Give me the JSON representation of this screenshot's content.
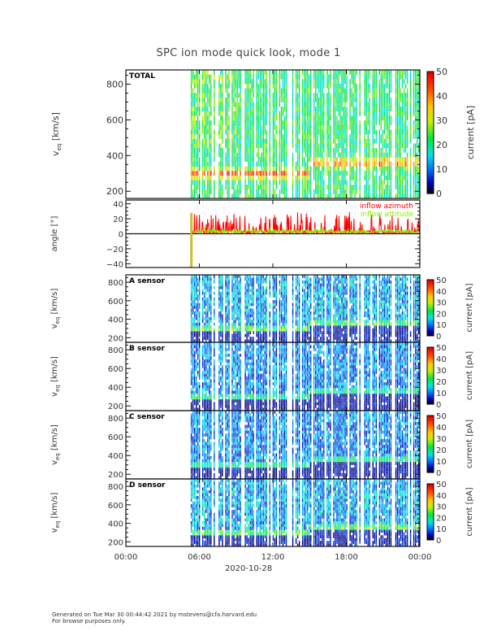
{
  "title": "SPC ion mode quick look, mode 1",
  "footer": {
    "line1": "Generated on Tue Mar 30 00:44:42 2021 by mstevens@cfa.harvard.edu",
    "line2": "For browse purposes only."
  },
  "chart_data": [
    {
      "type": "heatmap",
      "panel": "TOTAL",
      "label": "TOTAL",
      "ylabel": "v_eq [km/s]",
      "ylabel_main": "v",
      "ylabel_sub": "eq",
      "ylabel_unit": "[km/s]",
      "ylim": [
        160,
        880
      ],
      "yticks": [
        "200",
        "400",
        "600",
        "800"
      ],
      "xlim_hours": [
        0,
        24
      ],
      "data_start_hour": 5.3,
      "colorbar": {
        "label": "current [pA]",
        "range": [
          0,
          50
        ],
        "ticks": [
          "0",
          "10",
          "20",
          "30",
          "40",
          "50"
        ]
      },
      "peak_velocity_kms": {
        "from_6h_to_15h": 300,
        "from_15h_to_24h": 360
      }
    },
    {
      "type": "line",
      "panel": "angle",
      "ylabel": "angle [°]",
      "ylim": [
        -45,
        45
      ],
      "yticks": [
        "-40",
        "-20",
        "0",
        "20",
        "40"
      ],
      "xlim_hours": [
        0,
        24
      ],
      "series": [
        {
          "name": "inflow azimuth",
          "color": "#ff0000",
          "baseline_deg": 2,
          "spike_max_deg": 27
        },
        {
          "name": "inflow attitude",
          "color": "#88ee00",
          "baseline_deg": 3,
          "spike_max_deg": 8
        }
      ],
      "marker_bar": {
        "hour": 5.35,
        "range_deg": [
          -45,
          28
        ],
        "color": "#c8c030"
      }
    },
    {
      "type": "heatmap",
      "panel": "A",
      "label": "A sensor",
      "ylabel": "v_eq [km/s]",
      "ylim": [
        150,
        880
      ],
      "yticks": [
        "200",
        "400",
        "600",
        "800"
      ],
      "colorbar": {
        "label": "current [pA]",
        "range": [
          0,
          50
        ],
        "ticks": [
          "0",
          "10",
          "20",
          "30",
          "40",
          "50"
        ]
      }
    },
    {
      "type": "heatmap",
      "panel": "B",
      "label": "B sensor",
      "ylabel": "v_eq [km/s]",
      "ylim": [
        150,
        880
      ],
      "yticks": [
        "200",
        "400",
        "600",
        "800"
      ],
      "colorbar": {
        "label": "current [pA]",
        "range": [
          0,
          50
        ],
        "ticks": [
          "0",
          "10",
          "20",
          "30",
          "40",
          "50"
        ]
      }
    },
    {
      "type": "heatmap",
      "panel": "C",
      "label": "C sensor",
      "ylabel": "v_eq [km/s]",
      "ylim": [
        150,
        880
      ],
      "yticks": [
        "200",
        "400",
        "600",
        "800"
      ],
      "colorbar": {
        "label": "current [pA]",
        "range": [
          0,
          50
        ],
        "ticks": [
          "0",
          "10",
          "20",
          "30",
          "40",
          "50"
        ]
      }
    },
    {
      "type": "heatmap",
      "panel": "D",
      "label": "D sensor",
      "ylabel": "v_eq [km/s]",
      "ylim": [
        150,
        880
      ],
      "yticks": [
        "200",
        "400",
        "600",
        "800"
      ],
      "colorbar": {
        "label": "current [pA]",
        "range": [
          0,
          50
        ],
        "ticks": [
          "0",
          "10",
          "20",
          "30",
          "40",
          "50"
        ]
      }
    }
  ],
  "xaxis": {
    "tick_labels": [
      "00:00",
      "06:00",
      "12:00",
      "18:00",
      "00:00"
    ],
    "tick_hours": [
      0,
      6,
      12,
      18,
      24
    ],
    "date_label": "2020-10-28"
  }
}
